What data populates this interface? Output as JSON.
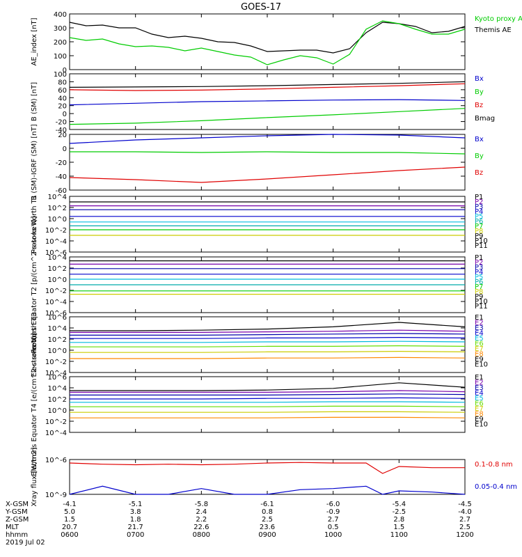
{
  "title": "GOES-17",
  "colors": {
    "black": "#000000",
    "red": "#e00000",
    "green": "#00cc00",
    "blue": "#0000cc",
    "cyan": "#00bbdd",
    "teal": "#00aaaa",
    "lime": "#66dd00",
    "yellow": "#cccc00",
    "orange": "#ff8800",
    "violet": "#7700aa",
    "navy": "#0000aa",
    "darkred": "#aa0000"
  },
  "x_time_labels": [
    "0600",
    "0700",
    "0800",
    "0900",
    "1000",
    "1100",
    "1200"
  ],
  "footer": {
    "row_labels": [
      "X-GSM",
      "Y-GSM",
      "Z-GSM",
      "MLT",
      "hhmm",
      "2019 Jul 02"
    ],
    "columns": [
      [
        "-4.1",
        "5.0",
        "1.5",
        "20.7",
        "0600"
      ],
      [
        "-5.1",
        "3.8",
        "1.8",
        "21.7",
        "0700"
      ],
      [
        "-5.8",
        "2.4",
        "2.2",
        "22.6",
        "0800"
      ],
      [
        "-6.1",
        "0.8",
        "2.5",
        "23.6",
        "0900"
      ],
      [
        "-6.0",
        "-0.9",
        "2.7",
        "0.5",
        "1000"
      ],
      [
        "-5.4",
        "-2.5",
        "2.8",
        "1.5",
        "1100"
      ],
      [
        "-4.5",
        "-4.0",
        "2.7",
        "2.5",
        "1200"
      ]
    ]
  },
  "chart_data": [
    {
      "type": "line",
      "ylabel": "AE_index [nT]",
      "ylim": [
        0,
        400
      ],
      "yticks": [
        "0",
        "100",
        "200",
        "300",
        "400"
      ],
      "x": [
        0,
        0.25,
        0.5,
        0.75,
        1,
        1.25,
        1.5,
        1.75,
        2,
        2.25,
        2.5,
        2.75,
        3,
        3.25,
        3.5,
        3.75,
        4,
        4.25,
        4.5,
        4.75,
        5,
        5.25,
        5.5,
        5.75,
        6
      ],
      "series": [
        {
          "name": "Themis AE",
          "color": "black",
          "values": [
            340,
            315,
            320,
            300,
            300,
            255,
            230,
            240,
            225,
            200,
            195,
            170,
            130,
            135,
            140,
            140,
            120,
            150,
            265,
            340,
            330,
            310,
            265,
            275,
            310
          ]
        },
        {
          "name": "Kyoto proxy AE",
          "color": "green",
          "values": [
            230,
            210,
            220,
            185,
            165,
            170,
            160,
            135,
            155,
            130,
            105,
            90,
            35,
            70,
            100,
            85,
            40,
            110,
            290,
            350,
            330,
            290,
            255,
            255,
            290
          ]
        }
      ],
      "legend_labels": [
        "Kyoto proxy AE",
        "Themis AE"
      ]
    },
    {
      "type": "line",
      "ylabel": "B (SM) [nT]",
      "ylim": [
        -40,
        100
      ],
      "yticks": [
        "-40",
        "-20",
        "0",
        "20",
        "40",
        "60",
        "80",
        "100"
      ],
      "x": [
        0,
        1,
        2,
        3,
        4,
        5,
        6
      ],
      "series": [
        {
          "name": "Bmag",
          "color": "black",
          "values": [
            66,
            67,
            68,
            70,
            73,
            76,
            80
          ]
        },
        {
          "name": "Bx",
          "color": "blue",
          "values": [
            22,
            26,
            30,
            32,
            34,
            35,
            33
          ]
        },
        {
          "name": "By",
          "color": "green",
          "values": [
            -27,
            -24,
            -18,
            -10,
            -3,
            5,
            13
          ]
        },
        {
          "name": "Bz",
          "color": "red",
          "values": [
            60,
            58,
            59,
            62,
            66,
            70,
            75
          ]
        }
      ],
      "legend_labels": [
        "Bx",
        "By",
        "Bz",
        "Bmag"
      ]
    },
    {
      "type": "line",
      "ylabel": "B (SM)-IGRF (SM) [nT]",
      "ylim": [
        -60,
        20
      ],
      "yticks": [
        "-60",
        "-40",
        "-20",
        "0",
        "20"
      ],
      "x": [
        0,
        1,
        2,
        3,
        4,
        5,
        6
      ],
      "series": [
        {
          "name": "Bx",
          "color": "blue",
          "values": [
            7,
            12,
            15,
            18,
            20,
            19,
            15
          ]
        },
        {
          "name": "By",
          "color": "green",
          "values": [
            -5,
            -5,
            -6,
            -5,
            -6,
            -6,
            -8
          ]
        },
        {
          "name": "Bz",
          "color": "red",
          "values": [
            -42,
            -45,
            -49,
            -44,
            -38,
            -32,
            -27
          ]
        }
      ],
      "legend_labels": [
        "Bx",
        "By",
        "Bz"
      ]
    },
    {
      "type": "line",
      "ylabel": "Protons North T1",
      "ylim": [
        -6,
        4
      ],
      "log_scale": true,
      "yticks": [
        "10^-6",
        "10^-4",
        "10^-2",
        "10^0",
        "10^2",
        "10^4"
      ],
      "x": [
        0,
        6
      ],
      "series": [
        {
          "name": "P1",
          "color": "black",
          "values": [
            3.0,
            3.0
          ]
        },
        {
          "name": "P2",
          "color": "violet",
          "values": [
            2.3,
            2.3
          ]
        },
        {
          "name": "P3",
          "color": "navy",
          "values": [
            1.6,
            1.6
          ]
        },
        {
          "name": "P4",
          "color": "blue",
          "values": [
            0.4,
            0.4
          ]
        },
        {
          "name": "P5",
          "color": "cyan",
          "values": [
            -0.6,
            -0.6
          ]
        },
        {
          "name": "P6",
          "color": "teal",
          "values": [
            -1.3,
            -1.3
          ]
        },
        {
          "name": "P7",
          "color": "green",
          "values": [
            -2.0,
            -2.0
          ]
        },
        {
          "name": "P8",
          "color": "yellow",
          "values": [
            -3.0,
            -3.0
          ]
        }
      ],
      "legend_labels": [
        "P1",
        "P2",
        "P3",
        "P4",
        "P5",
        "P6",
        "P7",
        "P8",
        "P9",
        "P10",
        "P11"
      ]
    },
    {
      "type": "line",
      "ylabel": "Protons Equator T2 [p/(cm^2-s-sr-keV)]",
      "ylim": [
        -6,
        4
      ],
      "log_scale": true,
      "yticks": [
        "10^-6",
        "10^-4",
        "10^-2",
        "10^0",
        "10^2",
        "10^4"
      ],
      "x": [
        0,
        6
      ],
      "series": [
        {
          "name": "P1",
          "color": "black",
          "values": [
            3.3,
            3.3
          ]
        },
        {
          "name": "P2",
          "color": "violet",
          "values": [
            2.7,
            2.7
          ]
        },
        {
          "name": "P3",
          "color": "navy",
          "values": [
            1.9,
            1.9
          ]
        },
        {
          "name": "P4",
          "color": "blue",
          "values": [
            0.9,
            0.9
          ]
        },
        {
          "name": "P5",
          "color": "cyan",
          "values": [
            0.0,
            0.0
          ]
        },
        {
          "name": "P6",
          "color": "teal",
          "values": [
            -1.0,
            -1.0
          ]
        },
        {
          "name": "P7",
          "color": "green",
          "values": [
            -2.1,
            -2.1
          ]
        },
        {
          "name": "P8",
          "color": "yellow",
          "values": [
            -2.7,
            -2.7
          ]
        }
      ],
      "legend_labels": [
        "P1",
        "P2",
        "P3",
        "P4",
        "P5",
        "P6",
        "P7",
        "P8",
        "P9",
        "P10",
        "P11"
      ]
    },
    {
      "type": "line",
      "ylabel": "Electrons North T3",
      "ylim": [
        -4,
        6
      ],
      "log_scale": true,
      "yticks": [
        "10^-4",
        "10^-2",
        "10^0",
        "10^2",
        "10^4",
        "10^6"
      ],
      "x": [
        0,
        1,
        2,
        3,
        4,
        5,
        6
      ],
      "series": [
        {
          "name": "E1",
          "color": "black",
          "values": [
            3.5,
            3.5,
            3.6,
            3.8,
            4.2,
            5.0,
            4.2
          ]
        },
        {
          "name": "E2",
          "color": "violet",
          "values": [
            3.2,
            3.2,
            3.2,
            3.3,
            3.4,
            3.6,
            3.4
          ]
        },
        {
          "name": "E3",
          "color": "navy",
          "values": [
            2.7,
            2.7,
            2.7,
            2.8,
            2.9,
            3.0,
            2.9
          ]
        },
        {
          "name": "E4",
          "color": "blue",
          "values": [
            2.1,
            2.1,
            2.1,
            2.2,
            2.2,
            2.3,
            2.2
          ]
        },
        {
          "name": "E5",
          "color": "cyan",
          "values": [
            1.4,
            1.4,
            1.4,
            1.5,
            1.5,
            1.6,
            1.5
          ]
        },
        {
          "name": "E6",
          "color": "lime",
          "values": [
            0.6,
            0.6,
            0.6,
            0.7,
            0.7,
            0.8,
            0.7
          ]
        },
        {
          "name": "E7",
          "color": "yellow",
          "values": [
            -0.4,
            -0.4,
            -0.4,
            -0.3,
            -0.3,
            -0.2,
            -0.3
          ]
        },
        {
          "name": "E8",
          "color": "orange",
          "values": [
            -1.5,
            -1.5,
            -1.5,
            -1.4,
            -1.4,
            -1.3,
            -1.4
          ]
        }
      ],
      "legend_labels": [
        "E1",
        "E2",
        "E3",
        "E4",
        "E5",
        "E6",
        "E7",
        "E8",
        "E9",
        "E10"
      ]
    },
    {
      "type": "line",
      "ylabel": "Electrons Equator T4 [e/(cm^2-s-sr-keV)]",
      "ylim": [
        -4,
        6
      ],
      "log_scale": true,
      "yticks": [
        "10^-4",
        "10^-2",
        "10^0",
        "10^2",
        "10^4",
        "10^6"
      ],
      "x": [
        0,
        1,
        2,
        3,
        4,
        5,
        6
      ],
      "series": [
        {
          "name": "E1",
          "color": "black",
          "values": [
            3.5,
            3.5,
            3.5,
            3.6,
            3.9,
            4.9,
            4.1
          ]
        },
        {
          "name": "E2",
          "color": "violet",
          "values": [
            3.2,
            3.2,
            3.2,
            3.2,
            3.3,
            3.5,
            3.3
          ]
        },
        {
          "name": "E3",
          "color": "navy",
          "values": [
            2.7,
            2.7,
            2.7,
            2.7,
            2.8,
            2.9,
            2.8
          ]
        },
        {
          "name": "E4",
          "color": "blue",
          "values": [
            2.0,
            2.0,
            2.0,
            2.1,
            2.1,
            2.2,
            2.1
          ]
        },
        {
          "name": "E5",
          "color": "cyan",
          "values": [
            1.4,
            1.4,
            1.4,
            1.4,
            1.5,
            1.5,
            1.4
          ]
        },
        {
          "name": "E6",
          "color": "lime",
          "values": [
            0.6,
            0.6,
            0.6,
            0.6,
            0.7,
            0.7,
            0.6
          ]
        },
        {
          "name": "E7",
          "color": "yellow",
          "values": [
            -0.4,
            -0.4,
            -0.4,
            -0.4,
            -0.3,
            -0.3,
            -0.4
          ]
        },
        {
          "name": "E8",
          "color": "orange",
          "values": [
            -1.4,
            -1.4,
            -1.4,
            -1.4,
            -1.3,
            -1.3,
            -1.4
          ]
        }
      ],
      "legend_labels": [
        "E1",
        "E2",
        "E3",
        "E4",
        "E5",
        "E6",
        "E7",
        "E8",
        "E9",
        "E10"
      ]
    },
    {
      "type": "line",
      "ylabel": "Xray flux [W/m2]",
      "ylim": [
        -9,
        -6
      ],
      "log_scale": true,
      "yticks": [
        "10^-9",
        "10^-6"
      ],
      "x": [
        0,
        0.5,
        1,
        1.5,
        2,
        2.5,
        3,
        3.5,
        4,
        4.5,
        4.75,
        5,
        5.5,
        6
      ],
      "series": [
        {
          "name": "0.1-0.8 nm",
          "color": "red",
          "values": [
            -6.3,
            -6.4,
            -6.45,
            -6.4,
            -6.45,
            -6.4,
            -6.3,
            -6.25,
            -6.3,
            -6.3,
            -7.2,
            -6.6,
            -6.7,
            -6.7
          ]
        },
        {
          "name": "0.05-0.4 nm",
          "color": "blue",
          "values": [
            -9.0,
            -8.3,
            -9.0,
            -9.0,
            -8.5,
            -9.0,
            -9.0,
            -8.6,
            -8.5,
            -8.3,
            -9.0,
            -8.7,
            -8.8,
            -9.0
          ]
        }
      ],
      "legend_labels": [
        "0.1-0.8 nm",
        "0.05-0.4 nm"
      ]
    }
  ]
}
